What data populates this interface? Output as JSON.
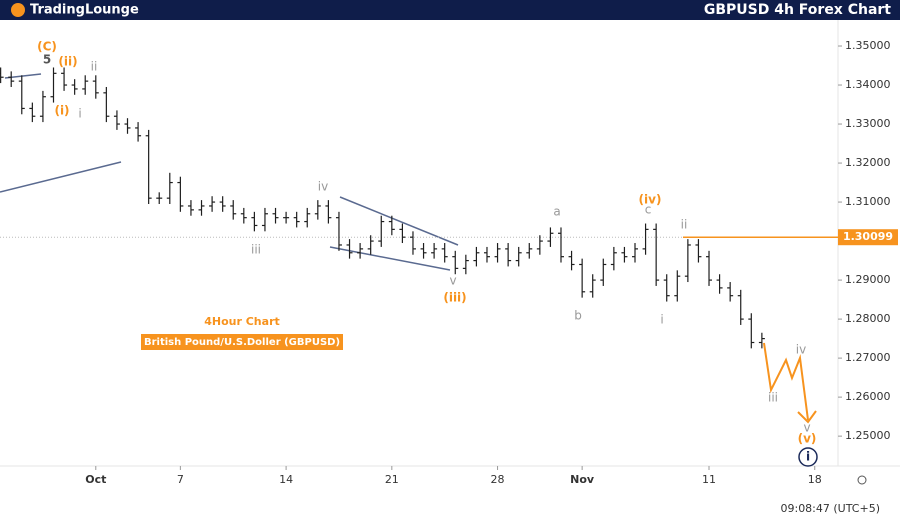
{
  "header": {
    "logo": "TradingLounge",
    "title": "GBPUSD 4h Forex Chart"
  },
  "chart_data": {
    "type": "ohlc",
    "color": "#1e1e1e",
    "subtitle": "4Hour Chart",
    "instrument": "British Pound/U.S.Doller (GBPUSD)",
    "timestamp": "09:08:47 (UTC+5)",
    "xlim": [
      -4.53,
      35.1
    ],
    "xticks": [
      {
        "value": 0,
        "label": "Oct"
      },
      {
        "value": 4,
        "label": "7"
      },
      {
        "value": 9,
        "label": "14"
      },
      {
        "value": 14,
        "label": "21"
      },
      {
        "value": 19,
        "label": "28"
      },
      {
        "value": 23,
        "label": "Nov"
      },
      {
        "value": 29,
        "label": "11"
      },
      {
        "value": 34,
        "label": "18"
      }
    ],
    "ylim": [
      1.2426,
      1.35667
    ],
    "yticks": [
      {
        "value": 1.35,
        "label": "1.35000"
      },
      {
        "value": 1.34,
        "label": "1.34000"
      },
      {
        "value": 1.33,
        "label": "1.33000"
      },
      {
        "value": 1.32,
        "label": "1.32000"
      },
      {
        "value": 1.31,
        "label": "1.31000"
      },
      {
        "value": 1.3,
        "label": "1.30000"
      },
      {
        "value": 1.29,
        "label": "1.29000"
      },
      {
        "value": 1.28,
        "label": "1.28000"
      },
      {
        "value": 1.27,
        "label": "1.27000"
      },
      {
        "value": 1.26,
        "label": "1.26000"
      },
      {
        "value": 1.25,
        "label": "1.25000"
      }
    ],
    "current_price": 1.30099,
    "current_price_color": "#f7931e",
    "x": [
      -4.5,
      -4,
      -3.5,
      -3,
      -2.5,
      -2,
      -1.5,
      -1,
      -0.5,
      0,
      0.5,
      1,
      1.5,
      2,
      2.5,
      3,
      3.5,
      4,
      4.5,
      5,
      5.5,
      6,
      6.5,
      7,
      7.5,
      8,
      8.5,
      9,
      9.5,
      10,
      10.5,
      11,
      11.5,
      12,
      12.5,
      13,
      13.5,
      14,
      14.5,
      15,
      15.5,
      16,
      16.5,
      17,
      17.5,
      18,
      18.5,
      19,
      19.5,
      20,
      20.5,
      21,
      21.5,
      22,
      22.5,
      23,
      23.5,
      24,
      24.5,
      25,
      25.5,
      26,
      26.5,
      27,
      27.5,
      28,
      28.5,
      29,
      29.5,
      30,
      30.5,
      31,
      31.5
    ],
    "open": [
      1.343,
      1.342,
      1.341,
      1.334,
      1.332,
      1.337,
      1.343,
      1.34,
      1.339,
      1.341,
      1.338,
      1.332,
      1.33,
      1.329,
      1.327,
      1.311,
      1.311,
      1.315,
      1.309,
      1.308,
      1.309,
      1.31,
      1.309,
      1.307,
      1.306,
      1.304,
      1.307,
      1.306,
      1.306,
      1.305,
      1.307,
      1.309,
      1.306,
      1.299,
      1.297,
      1.298,
      1.3,
      1.305,
      1.303,
      1.301,
      1.298,
      1.297,
      1.298,
      1.296,
      1.293,
      1.295,
      1.297,
      1.296,
      1.298,
      1.295,
      1.297,
      1.298,
      1.3,
      1.302,
      1.296,
      1.294,
      1.287,
      1.29,
      1.294,
      1.297,
      1.296,
      1.298,
      1.303,
      1.29,
      1.286,
      1.291,
      1.299,
      1.296,
      1.29,
      1.288,
      1.286,
      1.28,
      1.274
    ],
    "high": [
      1.3445,
      1.3435,
      1.3425,
      1.3355,
      1.3385,
      1.3445,
      1.3445,
      1.3415,
      1.3425,
      1.3425,
      1.3395,
      1.3335,
      1.3315,
      1.3305,
      1.3285,
      1.3125,
      1.3175,
      1.3165,
      1.3105,
      1.3105,
      1.3115,
      1.3115,
      1.3105,
      1.3085,
      1.3075,
      1.3085,
      1.3085,
      1.3075,
      1.3075,
      1.3085,
      1.3105,
      1.3105,
      1.3075,
      1.3005,
      1.2995,
      1.3015,
      1.3065,
      1.3065,
      1.3045,
      1.3025,
      1.2995,
      1.2995,
      1.2995,
      1.2975,
      1.2965,
      1.2985,
      1.2985,
      1.2995,
      1.2995,
      1.2985,
      1.2995,
      1.3015,
      1.3035,
      1.3035,
      1.2975,
      1.2955,
      1.2915,
      1.2955,
      1.2985,
      1.2985,
      1.2995,
      1.3045,
      1.3045,
      1.2915,
      1.2925,
      1.3005,
      1.3005,
      1.2975,
      1.2915,
      1.2895,
      1.2875,
      1.2815,
      1.2765
    ],
    "low": [
      1.3405,
      1.3395,
      1.3325,
      1.3305,
      1.3305,
      1.3355,
      1.3385,
      1.3375,
      1.3375,
      1.3365,
      1.3305,
      1.3285,
      1.3275,
      1.3255,
      1.3095,
      1.3095,
      1.3095,
      1.3075,
      1.3065,
      1.3065,
      1.3075,
      1.3075,
      1.3055,
      1.3045,
      1.3025,
      1.3025,
      1.3045,
      1.3045,
      1.3035,
      1.3035,
      1.3055,
      1.3045,
      1.2975,
      1.2955,
      1.2955,
      1.2965,
      1.2985,
      1.3015,
      1.2995,
      1.2965,
      1.2955,
      1.2955,
      1.2945,
      1.2915,
      1.2915,
      1.2935,
      1.2945,
      1.2945,
      1.2935,
      1.2935,
      1.2955,
      1.2965,
      1.2985,
      1.2945,
      1.2925,
      1.2855,
      1.2855,
      1.2885,
      1.2925,
      1.2945,
      1.2945,
      1.2965,
      1.2885,
      1.2845,
      1.2845,
      1.2895,
      1.2945,
      1.2885,
      1.2865,
      1.2845,
      1.2785,
      1.2725,
      1.2725
    ],
    "close": [
      1.342,
      1.341,
      1.334,
      1.332,
      1.337,
      1.343,
      1.34,
      1.339,
      1.341,
      1.338,
      1.332,
      1.33,
      1.329,
      1.327,
      1.311,
      1.311,
      1.315,
      1.309,
      1.308,
      1.309,
      1.31,
      1.309,
      1.307,
      1.306,
      1.304,
      1.307,
      1.306,
      1.306,
      1.305,
      1.307,
      1.309,
      1.306,
      1.299,
      1.297,
      1.298,
      1.3,
      1.305,
      1.303,
      1.301,
      1.298,
      1.297,
      1.298,
      1.296,
      1.293,
      1.295,
      1.297,
      1.296,
      1.298,
      1.295,
      1.297,
      1.298,
      1.3,
      1.302,
      1.296,
      1.294,
      1.287,
      1.29,
      1.294,
      1.297,
      1.296,
      1.298,
      1.303,
      1.29,
      1.286,
      1.291,
      1.299,
      1.296,
      1.29,
      1.288,
      1.286,
      1.28,
      1.274,
      1.275
    ],
    "annotations": [
      {
        "text": "(C)",
        "color": "#f7931e"
      },
      {
        "text": "5",
        "color": "#555555"
      },
      {
        "text": "(ii)",
        "color": "#f7931e"
      },
      {
        "text": "ii",
        "color": "#999999"
      },
      {
        "text": "(i)",
        "color": "#f7931e"
      },
      {
        "text": "i",
        "color": "#999999"
      },
      {
        "text": "iii",
        "color": "#999999"
      },
      {
        "text": "iv",
        "color": "#999999"
      },
      {
        "text": "v",
        "color": "#999999"
      },
      {
        "text": "(iii)",
        "color": "#f7931e"
      },
      {
        "text": "a",
        "color": "#999999"
      },
      {
        "text": "b",
        "color": "#999999"
      },
      {
        "text": "(iv)",
        "color": "#f7931e"
      },
      {
        "text": "c",
        "color": "#999999"
      },
      {
        "text": "ii",
        "color": "#999999"
      },
      {
        "text": "i",
        "color": "#999999"
      },
      {
        "text": "iv",
        "color": "#999999"
      },
      {
        "text": "iii",
        "color": "#999999"
      },
      {
        "text": "v",
        "color": "#999999"
      },
      {
        "text": "(v)",
        "color": "#f7931e"
      },
      {
        "text": "i",
        "color": "#1b2a5a",
        "circled": true
      }
    ]
  }
}
